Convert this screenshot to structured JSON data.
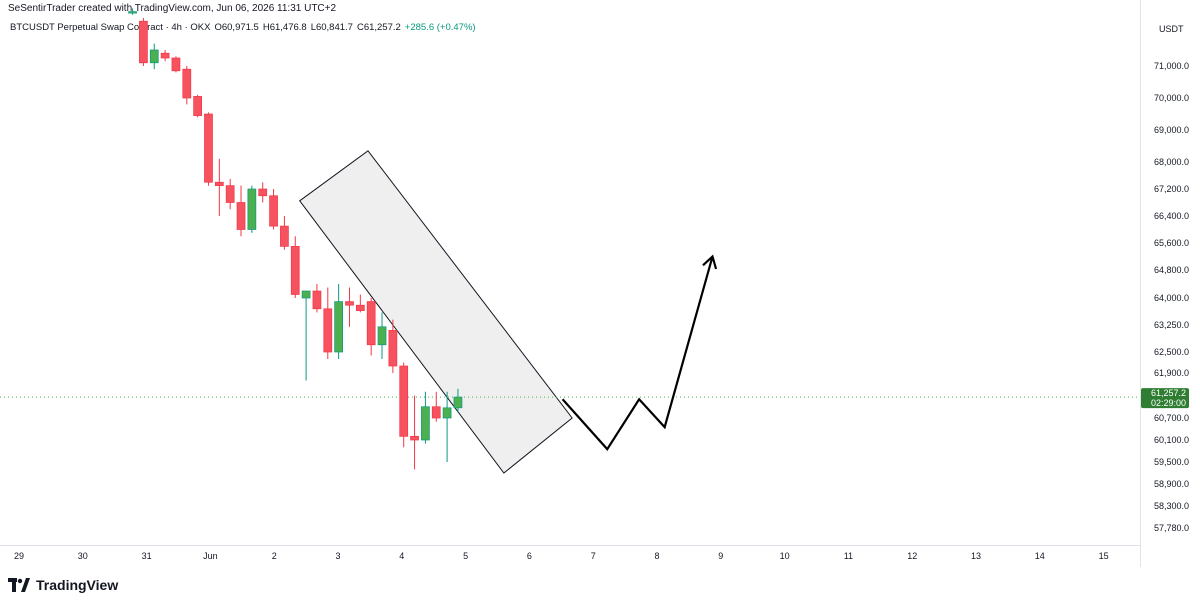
{
  "header": {
    "credit": "SeSentirTrader created with TradingView.com, Jun 06, 2026 11:31 UTC+2",
    "symbol": "BTCUSDT Perpetual Swap Contract · 4h · OKX",
    "open": "O60,971.5",
    "high": "H61,476.8",
    "low": "L60,841.7",
    "close": "C61,257.2",
    "change": "+285.6 (+0.47%)"
  },
  "price_axis": {
    "currency": "USDT",
    "current_price": "61,257.2",
    "countdown": "02:29:00"
  },
  "footer": {
    "brand": "TradingView"
  },
  "colors": {
    "up": "#089981",
    "up_body": "#4caf50",
    "down": "#f23645",
    "down_body": "#f7525f",
    "channel_fill": "#e9e9e9",
    "price_label_bg": "#2e7d32"
  },
  "chart_data": {
    "type": "candlestick",
    "timeframe": "4h",
    "y_ticks": [
      "71,000.0",
      "70,000.0",
      "69,000.0",
      "68,000.0",
      "67,200.0",
      "66,400.0",
      "65,600.0",
      "64,800.0",
      "64,000.0",
      "63,250.0",
      "62,500.0",
      "61,900.0",
      "60,700.0",
      "60,100.0",
      "59,500.0",
      "58,900.0",
      "58,300.0",
      "57,780.0"
    ],
    "x_ticks": [
      "29",
      "30",
      "31",
      "Jun",
      "2",
      "3",
      "4",
      "5",
      "6",
      "7",
      "8",
      "9",
      "10",
      "11",
      "12",
      "13",
      "14",
      "15"
    ],
    "candles": [
      {
        "x": 1.78,
        "o": 72700,
        "h": 72800,
        "l": 72600,
        "c": 72700
      },
      {
        "x": 1.95,
        "o": 72400,
        "h": 72500,
        "l": 71000,
        "c": 71100
      },
      {
        "x": 2.12,
        "o": 71100,
        "h": 71700,
        "l": 70900,
        "c": 71500
      },
      {
        "x": 2.29,
        "o": 71400,
        "h": 71500,
        "l": 71150,
        "c": 71250
      },
      {
        "x": 2.46,
        "o": 71250,
        "h": 71300,
        "l": 70800,
        "c": 70850
      },
      {
        "x": 2.63,
        "o": 70900,
        "h": 71000,
        "l": 69800,
        "c": 70000
      },
      {
        "x": 2.8,
        "o": 70050,
        "h": 70100,
        "l": 69400,
        "c": 69450
      },
      {
        "x": 2.97,
        "o": 69500,
        "h": 69550,
        "l": 67300,
        "c": 67400
      },
      {
        "x": 3.14,
        "o": 67400,
        "h": 68100,
        "l": 66400,
        "c": 67300
      },
      {
        "x": 3.31,
        "o": 67300,
        "h": 67500,
        "l": 66600,
        "c": 66800
      },
      {
        "x": 3.48,
        "o": 66800,
        "h": 67300,
        "l": 65800,
        "c": 66000
      },
      {
        "x": 3.65,
        "o": 66000,
        "h": 67300,
        "l": 65900,
        "c": 67200
      },
      {
        "x": 3.82,
        "o": 67200,
        "h": 67400,
        "l": 66800,
        "c": 67000
      },
      {
        "x": 3.99,
        "o": 67000,
        "h": 67200,
        "l": 66000,
        "c": 66100
      },
      {
        "x": 4.16,
        "o": 66100,
        "h": 66400,
        "l": 65400,
        "c": 65500
      },
      {
        "x": 4.33,
        "o": 65500,
        "h": 65800,
        "l": 64000,
        "c": 64100
      },
      {
        "x": 4.5,
        "o": 64000,
        "h": 64200,
        "l": 61700,
        "c": 64200
      },
      {
        "x": 4.67,
        "o": 64200,
        "h": 64400,
        "l": 63600,
        "c": 63700
      },
      {
        "x": 4.84,
        "o": 63700,
        "h": 64300,
        "l": 62300,
        "c": 62500
      },
      {
        "x": 5.01,
        "o": 62500,
        "h": 64400,
        "l": 62300,
        "c": 63900
      },
      {
        "x": 5.18,
        "o": 63900,
        "h": 64300,
        "l": 63200,
        "c": 63800
      },
      {
        "x": 5.35,
        "o": 63800,
        "h": 64100,
        "l": 63600,
        "c": 63650
      },
      {
        "x": 5.52,
        "o": 63900,
        "h": 64000,
        "l": 62400,
        "c": 62700
      },
      {
        "x": 5.69,
        "o": 62700,
        "h": 63600,
        "l": 62300,
        "c": 63200
      },
      {
        "x": 5.86,
        "o": 63100,
        "h": 63400,
        "l": 61900,
        "c": 62100
      },
      {
        "x": 6.03,
        "o": 62100,
        "h": 62200,
        "l": 59900,
        "c": 60200
      },
      {
        "x": 6.2,
        "o": 60200,
        "h": 61300,
        "l": 59300,
        "c": 60100
      },
      {
        "x": 6.37,
        "o": 60100,
        "h": 61400,
        "l": 60000,
        "c": 61000
      },
      {
        "x": 6.54,
        "o": 61000,
        "h": 61400,
        "l": 60600,
        "c": 60700
      },
      {
        "x": 6.71,
        "o": 60700,
        "h": 61400,
        "l": 59500,
        "c": 60971.5
      },
      {
        "x": 6.88,
        "o": 60971.5,
        "h": 61476.8,
        "l": 60841.7,
        "c": 61257.2
      }
    ],
    "channel": {
      "corners": [
        [
          4.4,
          66850
        ],
        [
          5.47,
          68350
        ],
        [
          8.67,
          60700
        ],
        [
          7.6,
          59200
        ]
      ]
    },
    "projection": {
      "points": [
        [
          8.52,
          61200
        ],
        [
          9.22,
          59850
        ],
        [
          9.72,
          61200
        ],
        [
          10.12,
          60450
        ],
        [
          10.87,
          65200
        ]
      ]
    },
    "current_price": 61257.2
  }
}
